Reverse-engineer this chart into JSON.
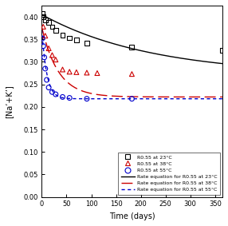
{
  "title": "",
  "xlabel": "Time (days)",
  "ylabel": "[Na’+K’]",
  "xlim": [
    0,
    365
  ],
  "ylim": [
    0,
    0.425
  ],
  "xticks": [
    0,
    50,
    100,
    150,
    200,
    250,
    300,
    350
  ],
  "yticks": [
    0,
    0.05,
    0.1,
    0.15,
    0.2,
    0.25,
    0.3,
    0.35,
    0.4
  ],
  "data_23C_x": [
    1,
    3,
    7,
    14,
    21,
    28,
    42,
    56,
    70,
    91,
    182,
    365
  ],
  "data_23C_y": [
    0.408,
    0.4,
    0.393,
    0.388,
    0.378,
    0.37,
    0.36,
    0.353,
    0.348,
    0.342,
    0.333,
    0.325
  ],
  "data_38C_x": [
    3,
    7,
    14,
    21,
    28,
    42,
    56,
    70,
    91,
    112,
    182
  ],
  "data_38C_y": [
    0.378,
    0.358,
    0.33,
    0.315,
    0.305,
    0.283,
    0.278,
    0.277,
    0.276,
    0.275,
    0.273
  ],
  "data_55C_x": [
    1,
    3,
    5,
    7,
    10,
    14,
    21,
    28,
    42,
    56,
    91,
    182
  ],
  "data_55C_y": [
    0.352,
    0.335,
    0.31,
    0.285,
    0.26,
    0.243,
    0.233,
    0.228,
    0.222,
    0.22,
    0.218,
    0.218
  ],
  "curve_23C_params": {
    "A": 0.135,
    "k": 0.0045,
    "C": 0.27
  },
  "curve_38C_params": {
    "A": 0.155,
    "k": 0.03,
    "C": 0.222
  },
  "curve_55C_params": {
    "A": 0.155,
    "k": 0.1,
    "C": 0.218
  },
  "color_23C": "#000000",
  "color_38C": "#cc0000",
  "color_55C": "#0000cc",
  "legend_23C_marker": "R0.55 at 23°C",
  "legend_38C_marker": "R0.55 at 38°C",
  "legend_55C_marker": "R0.55 at 55°C",
  "legend_23C_line": "Rate equation for R0.55 at 23°C",
  "legend_38C_line": "Rate equation for R0.55 at 38°C",
  "legend_55C_line": "Rate equation for R0.55 at 55°C",
  "figsize": [
    2.86,
    2.83
  ],
  "dpi": 100
}
